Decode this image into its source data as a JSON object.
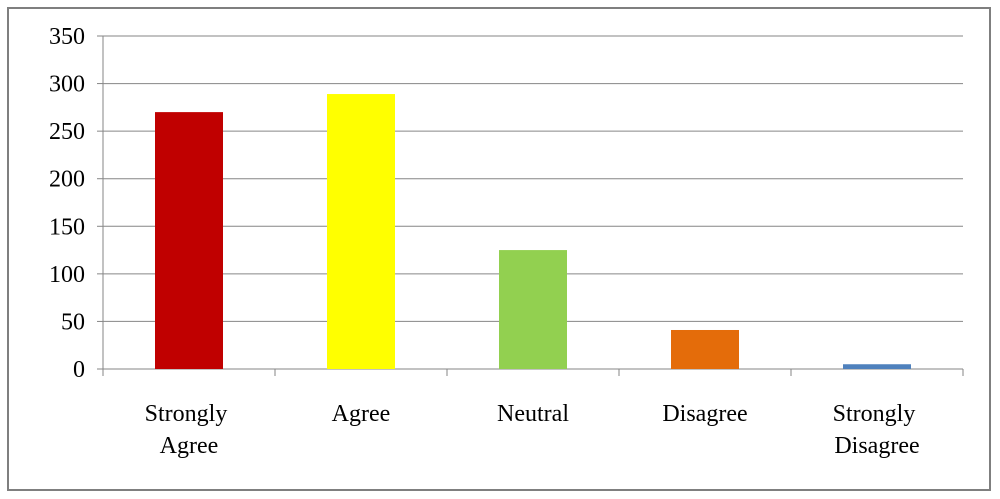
{
  "chart_data": {
    "type": "bar",
    "categories": [
      "Strongly Agree",
      "Agree",
      "Neutral",
      "Disagree",
      "Strongly Disagree"
    ],
    "values": [
      270,
      289,
      125,
      41,
      5
    ],
    "colors": [
      "#c00000",
      "#ffff00",
      "#92d050",
      "#e46c0a",
      "#4f81bd"
    ],
    "ylim": [
      0,
      350
    ],
    "yticks": [
      0,
      50,
      100,
      150,
      200,
      250,
      300,
      350
    ],
    "grid": true
  }
}
